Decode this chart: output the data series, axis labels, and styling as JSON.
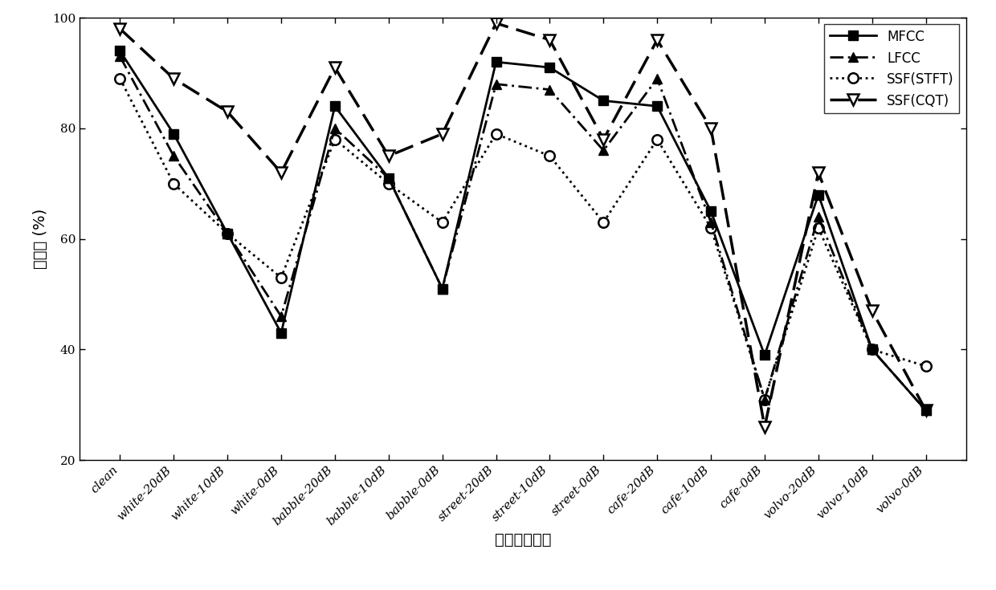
{
  "categories": [
    "clean",
    "white-20dB",
    "white-10dB",
    "white-0dB",
    "babble-20dB",
    "babble-10dB",
    "babble-0dB",
    "street-20dB",
    "street-10dB",
    "street-0dB",
    "cafe-20dB",
    "cafe-10dB",
    "cafe-0dB",
    "volvo-20dB",
    "volvo-10dB",
    "volvo-0dB"
  ],
  "MFCC": [
    94,
    79,
    61,
    43,
    84,
    71,
    51,
    92,
    91,
    85,
    84,
    65,
    39,
    68,
    40,
    29
  ],
  "LFCC": [
    93,
    75,
    61,
    46,
    80,
    71,
    51,
    88,
    87,
    76,
    89,
    63,
    31,
    64,
    40,
    29
  ],
  "SSF_STFT": [
    89,
    70,
    61,
    53,
    78,
    70,
    63,
    79,
    75,
    63,
    78,
    62,
    31,
    62,
    40,
    37
  ],
  "SSF_CQT": [
    98,
    89,
    83,
    72,
    91,
    75,
    79,
    99,
    96,
    78,
    96,
    80,
    26,
    72,
    47,
    29
  ],
  "ylabel": "识别率 (%)",
  "xlabel": "不同的测试集",
  "ylim": [
    20,
    100
  ],
  "yticks": [
    20,
    40,
    60,
    80,
    100
  ],
  "legend_labels": [
    "MFCC",
    "LFCC",
    "SSF(STFT)",
    "SSF(CQT)"
  ],
  "background_color": "#ffffff",
  "tick_fontsize": 11,
  "label_fontsize": 14,
  "legend_fontsize": 12,
  "linewidth": 2.0,
  "linewidth_cqt": 2.5
}
